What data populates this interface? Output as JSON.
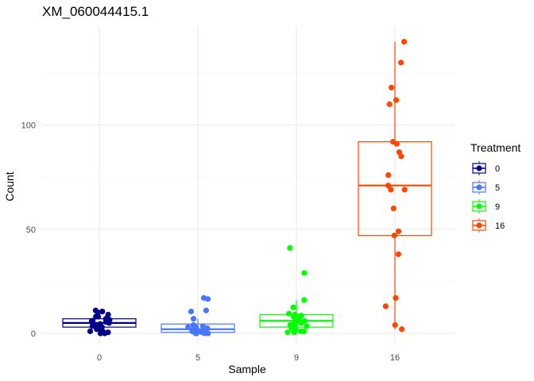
{
  "chart_data": {
    "type": "box",
    "title": "XM_060044415.1",
    "xlabel": "Sample",
    "ylabel": "Count",
    "categories": [
      "0",
      "5",
      "9",
      "16"
    ],
    "ylim": [
      -5,
      146
    ],
    "yticks": [
      0,
      50,
      100
    ],
    "grid": true,
    "legend": {
      "title": "Treatment",
      "placement": "right",
      "entries": [
        "0",
        "5",
        "9",
        "16"
      ]
    },
    "colors": {
      "0": "#00008b",
      "5": "#4876ff",
      "9": "#00ff00",
      "16": "#ff4500"
    },
    "boxes": [
      {
        "category": "0",
        "min": 0,
        "q1": 3,
        "median": 5,
        "q3": 7,
        "max": 11
      },
      {
        "category": "5",
        "min": 0,
        "q1": 0.5,
        "median": 2,
        "q3": 4.5,
        "max": 7
      },
      {
        "category": "9",
        "min": 0,
        "q1": 3,
        "median": 6,
        "q3": 9,
        "max": 16
      },
      {
        "category": "16",
        "min": 2,
        "q1": 47,
        "median": 71,
        "q3": 92,
        "max": 140
      }
    ],
    "points": [
      {
        "category": "0",
        "values": [
          0.5,
          1,
          1.5,
          2,
          2.5,
          3,
          3.5,
          4,
          4.5,
          5,
          5.5,
          6,
          6.5,
          7,
          8,
          9,
          10,
          10.5,
          11,
          0,
          0,
          1,
          3,
          6,
          8
        ]
      },
      {
        "category": "5",
        "values": [
          0,
          0,
          0,
          0.5,
          0.5,
          1,
          1,
          1,
          1.5,
          2,
          2,
          2.5,
          3,
          3,
          3.5,
          4,
          7,
          10.5,
          11,
          16.5,
          17,
          0,
          1,
          2
        ]
      },
      {
        "category": "9",
        "values": [
          0.5,
          1,
          1,
          2,
          2.5,
          3,
          3.5,
          4,
          4.5,
          5,
          5.5,
          6,
          7,
          8,
          8.5,
          9,
          9.5,
          12.5,
          16,
          29,
          41,
          0.5,
          4,
          6
        ]
      },
      {
        "category": "16",
        "values": [
          2,
          4,
          13,
          17,
          38,
          47,
          49,
          60,
          69,
          69,
          71,
          76,
          85,
          87,
          91,
          92,
          110,
          112,
          118,
          130,
          140
        ]
      }
    ]
  }
}
